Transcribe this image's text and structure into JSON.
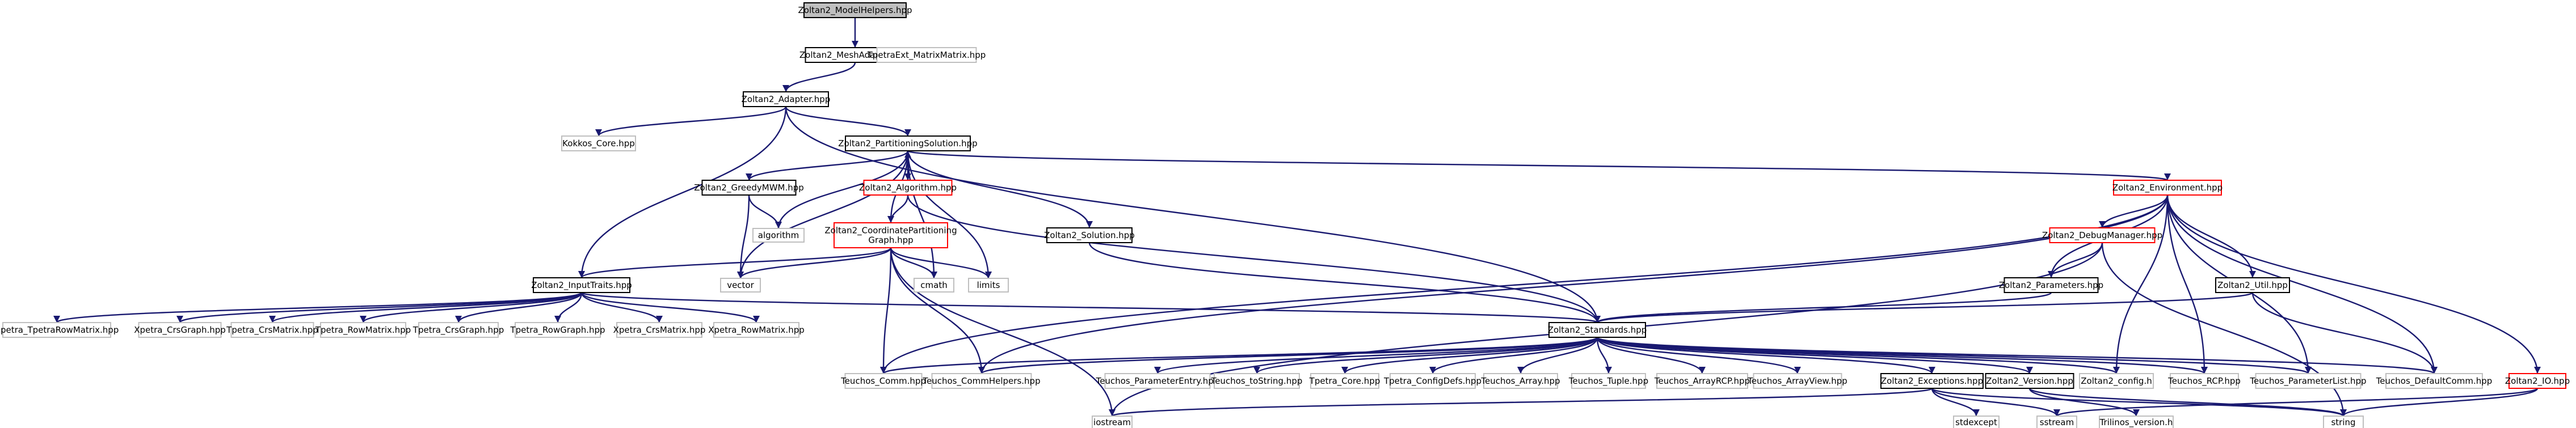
{
  "colors": {
    "edge": "#191970",
    "normal_border": "#000000",
    "error_border": "#ff0000",
    "external_border": "#bfbfbf",
    "highlight_fill": "#bfbfbf",
    "fill": "#ffffff"
  },
  "nodes": [
    {
      "id": "n_modelhelpers",
      "kind": "highlight",
      "lines": [
        "Zoltan2_ModelHelpers.hpp"
      ]
    },
    {
      "id": "n_meshadapter",
      "kind": "normal",
      "lines": [
        "Zoltan2_MeshAdapter.hpp"
      ]
    },
    {
      "id": "n_tpetraext",
      "kind": "external",
      "lines": [
        "TpetraExt_MatrixMatrix.hpp"
      ]
    },
    {
      "id": "n_adapter",
      "kind": "normal",
      "lines": [
        "Zoltan2_Adapter.hpp"
      ]
    },
    {
      "id": "n_kokkos",
      "kind": "external",
      "lines": [
        "Kokkos_Core.hpp"
      ]
    },
    {
      "id": "n_partsol",
      "kind": "normal",
      "lines": [
        "Zoltan2_PartitioningSolution.hpp"
      ]
    },
    {
      "id": "n_greedy",
      "kind": "normal",
      "lines": [
        "Zoltan2_GreedyMWM.hpp"
      ]
    },
    {
      "id": "n_algorithm_h",
      "kind": "error",
      "lines": [
        "Zoltan2_Algorithm.hpp"
      ]
    },
    {
      "id": "n_algorithm",
      "kind": "external",
      "lines": [
        "algorithm"
      ]
    },
    {
      "id": "n_coordgraph",
      "kind": "error",
      "lines": [
        "Zoltan2_CoordinatePartitioning",
        "Graph.hpp"
      ]
    },
    {
      "id": "n_solution",
      "kind": "normal",
      "lines": [
        "Zoltan2_Solution.hpp"
      ]
    },
    {
      "id": "n_environment",
      "kind": "error",
      "lines": [
        "Zoltan2_Environment.hpp"
      ]
    },
    {
      "id": "n_debugmgr",
      "kind": "error",
      "lines": [
        "Zoltan2_DebugManager.hpp"
      ]
    },
    {
      "id": "n_util",
      "kind": "normal",
      "lines": [
        "Zoltan2_Util.hpp"
      ]
    },
    {
      "id": "n_parameters",
      "kind": "normal",
      "lines": [
        "Zoltan2_Parameters.hpp"
      ]
    },
    {
      "id": "n_vector",
      "kind": "external",
      "lines": [
        "vector"
      ]
    },
    {
      "id": "n_cmath",
      "kind": "external",
      "lines": [
        "cmath"
      ]
    },
    {
      "id": "n_limits",
      "kind": "external",
      "lines": [
        "limits"
      ]
    },
    {
      "id": "n_inputtraits",
      "kind": "normal",
      "lines": [
        "Zoltan2_InputTraits.hpp"
      ]
    },
    {
      "id": "n_standards",
      "kind": "normal",
      "lines": [
        "Zoltan2_Standards.hpp"
      ]
    },
    {
      "id": "n_x_tcrs",
      "kind": "external",
      "lines": [
        "Xpetra_TpetraRowMatrix.hpp"
      ]
    },
    {
      "id": "n_x_crsg",
      "kind": "external",
      "lines": [
        "Xpetra_CrsGraph.hpp"
      ]
    },
    {
      "id": "n_t_crsm",
      "kind": "external",
      "lines": [
        "Tpetra_CrsMatrix.hpp"
      ]
    },
    {
      "id": "n_t_rowm",
      "kind": "external",
      "lines": [
        "Tpetra_RowMatrix.hpp"
      ]
    },
    {
      "id": "n_t_crsg",
      "kind": "external",
      "lines": [
        "Tpetra_CrsGraph.hpp"
      ]
    },
    {
      "id": "n_t_rowg",
      "kind": "external",
      "lines": [
        "Tpetra_RowGraph.hpp"
      ]
    },
    {
      "id": "n_x_crsm",
      "kind": "external",
      "lines": [
        "Xpetra_CrsMatrix.hpp"
      ]
    },
    {
      "id": "n_x_rowm",
      "kind": "external",
      "lines": [
        "Xpetra_RowMatrix.hpp"
      ]
    },
    {
      "id": "n_io",
      "kind": "error",
      "lines": [
        "Zoltan2_IO.hpp"
      ]
    },
    {
      "id": "n_comm",
      "kind": "external",
      "lines": [
        "Teuchos_Comm.hpp"
      ]
    },
    {
      "id": "n_commhelpers",
      "kind": "external",
      "lines": [
        "Teuchos_CommHelpers.hpp"
      ]
    },
    {
      "id": "n_paramentry",
      "kind": "external",
      "lines": [
        "Teuchos_ParameterEntry.hpp"
      ]
    },
    {
      "id": "n_tostring",
      "kind": "external",
      "lines": [
        "Teuchos_toString.hpp"
      ]
    },
    {
      "id": "n_tcore",
      "kind": "external",
      "lines": [
        "Tpetra_Core.hpp"
      ]
    },
    {
      "id": "n_configdefs",
      "kind": "external",
      "lines": [
        "Tpetra_ConfigDefs.hpp"
      ]
    },
    {
      "id": "n_array",
      "kind": "external",
      "lines": [
        "Teuchos_Array.hpp"
      ]
    },
    {
      "id": "n_tuple",
      "kind": "external",
      "lines": [
        "Teuchos_Tuple.hpp"
      ]
    },
    {
      "id": "n_arrayrcp",
      "kind": "external",
      "lines": [
        "Teuchos_ArrayRCP.hpp"
      ]
    },
    {
      "id": "n_arrayview",
      "kind": "external",
      "lines": [
        "Teuchos_ArrayView.hpp"
      ]
    },
    {
      "id": "n_exceptions",
      "kind": "normal",
      "lines": [
        "Zoltan2_Exceptions.hpp"
      ]
    },
    {
      "id": "n_version",
      "kind": "normal",
      "lines": [
        "Zoltan2_Version.hpp"
      ]
    },
    {
      "id": "n_config",
      "kind": "external",
      "lines": [
        "Zoltan2_config.h"
      ]
    },
    {
      "id": "n_rcp",
      "kind": "external",
      "lines": [
        "Teuchos_RCP.hpp"
      ]
    },
    {
      "id": "n_paramlist",
      "kind": "external",
      "lines": [
        "Teuchos_ParameterList.hpp"
      ]
    },
    {
      "id": "n_defaultcomm",
      "kind": "external",
      "lines": [
        "Teuchos_DefaultComm.hpp"
      ]
    },
    {
      "id": "n_iostream",
      "kind": "external",
      "lines": [
        "iostream"
      ]
    },
    {
      "id": "n_stdexcept",
      "kind": "external",
      "lines": [
        "stdexcept"
      ]
    },
    {
      "id": "n_sstream",
      "kind": "external",
      "lines": [
        "sstream"
      ]
    },
    {
      "id": "n_trilinos",
      "kind": "external",
      "lines": [
        "Trilinos_version.h"
      ]
    },
    {
      "id": "n_string",
      "kind": "external",
      "lines": [
        "string"
      ]
    }
  ],
  "edges": [
    [
      "n_modelhelpers",
      "n_meshadapter"
    ],
    [
      "n_meshadapter",
      "n_adapter"
    ],
    [
      "n_meshadapter",
      "n_tpetraext"
    ],
    [
      "n_adapter",
      "n_kokkos"
    ],
    [
      "n_adapter",
      "n_partsol"
    ],
    [
      "n_adapter",
      "n_inputtraits"
    ],
    [
      "n_adapter",
      "n_standards"
    ],
    [
      "n_partsol",
      "n_greedy"
    ],
    [
      "n_partsol",
      "n_algorithm_h"
    ],
    [
      "n_partsol",
      "n_algorithm"
    ],
    [
      "n_partsol",
      "n_coordgraph"
    ],
    [
      "n_partsol",
      "n_solution"
    ],
    [
      "n_partsol",
      "n_environment"
    ],
    [
      "n_partsol",
      "n_vector"
    ],
    [
      "n_partsol",
      "n_cmath"
    ],
    [
      "n_partsol",
      "n_limits"
    ],
    [
      "n_algorithm_h",
      "n_partsol"
    ],
    [
      "n_algorithm_h",
      "n_coordgraph"
    ],
    [
      "n_algorithm_h",
      "n_standards"
    ],
    [
      "n_greedy",
      "n_algorithm"
    ],
    [
      "n_greedy",
      "n_vector"
    ],
    [
      "n_coordgraph",
      "n_inputtraits"
    ],
    [
      "n_coordgraph",
      "n_vector"
    ],
    [
      "n_coordgraph",
      "n_cmath"
    ],
    [
      "n_coordgraph",
      "n_limits"
    ],
    [
      "n_coordgraph",
      "n_comm"
    ],
    [
      "n_coordgraph",
      "n_commhelpers"
    ],
    [
      "n_coordgraph",
      "n_iostream"
    ],
    [
      "n_solution",
      "n_standards"
    ],
    [
      "n_environment",
      "n_debugmgr"
    ],
    [
      "n_environment",
      "n_parameters"
    ],
    [
      "n_environment",
      "n_util"
    ],
    [
      "n_environment",
      "n_io"
    ],
    [
      "n_environment",
      "n_comm"
    ],
    [
      "n_environment",
      "n_commhelpers"
    ],
    [
      "n_environment",
      "n_config"
    ],
    [
      "n_environment",
      "n_rcp"
    ],
    [
      "n_environment",
      "n_paramlist"
    ],
    [
      "n_environment",
      "n_defaultcomm"
    ],
    [
      "n_debugmgr",
      "n_parameters"
    ],
    [
      "n_debugmgr",
      "n_iostream"
    ],
    [
      "n_debugmgr",
      "n_string"
    ],
    [
      "n_parameters",
      "n_standards"
    ],
    [
      "n_util",
      "n_standards"
    ],
    [
      "n_util",
      "n_defaultcomm"
    ],
    [
      "n_io",
      "n_sstream"
    ],
    [
      "n_io",
      "n_string"
    ],
    [
      "n_inputtraits",
      "n_standards"
    ],
    [
      "n_inputtraits",
      "n_x_tcrs"
    ],
    [
      "n_inputtraits",
      "n_x_crsg"
    ],
    [
      "n_inputtraits",
      "n_t_crsm"
    ],
    [
      "n_inputtraits",
      "n_t_rowm"
    ],
    [
      "n_inputtraits",
      "n_t_crsg"
    ],
    [
      "n_inputtraits",
      "n_t_rowg"
    ],
    [
      "n_inputtraits",
      "n_x_crsm"
    ],
    [
      "n_inputtraits",
      "n_x_rowm"
    ],
    [
      "n_standards",
      "n_comm"
    ],
    [
      "n_standards",
      "n_commhelpers"
    ],
    [
      "n_standards",
      "n_paramentry"
    ],
    [
      "n_standards",
      "n_tostring"
    ],
    [
      "n_standards",
      "n_tcore"
    ],
    [
      "n_standards",
      "n_configdefs"
    ],
    [
      "n_standards",
      "n_array"
    ],
    [
      "n_standards",
      "n_tuple"
    ],
    [
      "n_standards",
      "n_arrayrcp"
    ],
    [
      "n_standards",
      "n_arrayview"
    ],
    [
      "n_standards",
      "n_exceptions"
    ],
    [
      "n_standards",
      "n_version"
    ],
    [
      "n_standards",
      "n_config"
    ],
    [
      "n_standards",
      "n_rcp"
    ],
    [
      "n_standards",
      "n_paramlist"
    ],
    [
      "n_standards",
      "n_defaultcomm"
    ],
    [
      "n_exceptions",
      "n_iostream"
    ],
    [
      "n_exceptions",
      "n_stdexcept"
    ],
    [
      "n_exceptions",
      "n_sstream"
    ],
    [
      "n_exceptions",
      "n_string"
    ],
    [
      "n_version",
      "n_trilinos"
    ],
    [
      "n_version",
      "n_string"
    ]
  ]
}
